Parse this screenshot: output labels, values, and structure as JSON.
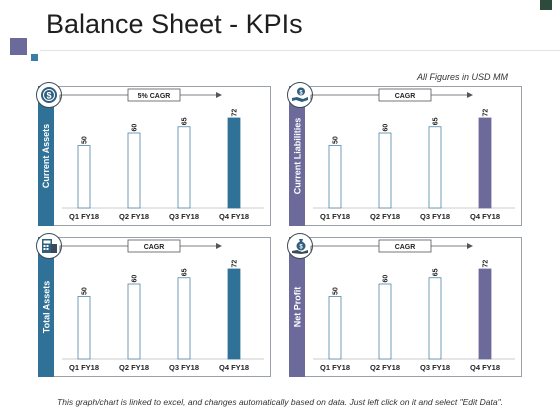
{
  "header": {
    "title": "Balance Sheet - KPIs",
    "note": "All Figures in USD MM"
  },
  "footer": {
    "note": "This graph/chart is linked to excel, and changes automatically based on data. Just left click on it and select \"Edit Data\"."
  },
  "colors": {
    "blue_accent": "#2f7197",
    "purple_accent": "#6c6a9a",
    "frame": "#9aa1a8"
  },
  "chart_data": [
    {
      "type": "bar",
      "label": "Current Assets",
      "cagr_label": "5% CAGR",
      "icon": "dollar-coin-icon",
      "accent": "#2f7197",
      "categories": [
        "Q1 FY18",
        "Q2 FY18",
        "Q3 FY18",
        "Q4 FY18"
      ],
      "values": [
        50,
        60,
        65,
        72
      ],
      "ylim": [
        0,
        80
      ]
    },
    {
      "type": "bar",
      "label": "Current Liabilities",
      "cagr_label": "CAGR",
      "icon": "money-hand-icon",
      "accent": "#6c6a9a",
      "categories": [
        "Q1 FY18",
        "Q2 FY18",
        "Q3 FY18",
        "Q4 FY18"
      ],
      "values": [
        50,
        60,
        65,
        72
      ],
      "ylim": [
        0,
        80
      ]
    },
    {
      "type": "bar",
      "label": "Total Assets",
      "cagr_label": "CAGR",
      "icon": "calculator-icon",
      "accent": "#2f7197",
      "categories": [
        "Q1 FY18",
        "Q2 FY18",
        "Q3 FY18",
        "Q4 FY18"
      ],
      "values": [
        50,
        60,
        65,
        72
      ],
      "ylim": [
        0,
        80
      ]
    },
    {
      "type": "bar",
      "label": "Net Profit",
      "cagr_label": "CAGR",
      "icon": "money-bag-icon",
      "accent": "#6c6a9a",
      "categories": [
        "Q1 FY18",
        "Q2 FY18",
        "Q3 FY18",
        "Q4 FY18"
      ],
      "values": [
        50,
        60,
        65,
        72
      ],
      "ylim": [
        0,
        80
      ]
    }
  ]
}
